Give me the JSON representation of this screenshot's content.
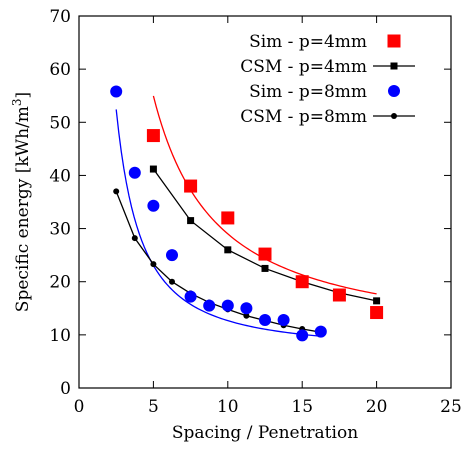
{
  "chart_data": {
    "type": "scatter",
    "xlabel": "Spacing / Penetration",
    "ylabel_main": "Specific energy [kWh/m",
    "ylabel_sup": "3",
    "ylabel_end": "]",
    "xlim": [
      0,
      25
    ],
    "ylim": [
      0,
      70
    ],
    "xticks": [
      0,
      5,
      10,
      15,
      20,
      25
    ],
    "yticks": [
      0,
      10,
      20,
      30,
      40,
      50,
      60,
      70
    ],
    "grid": false,
    "legend_position": "top-right",
    "series": [
      {
        "name": "Sim - p=4mm",
        "kind": "markers",
        "marker": "square",
        "color": "#ff0000",
        "x": [
          5,
          7.5,
          10,
          12.5,
          15,
          17.5,
          20
        ],
        "y": [
          47.5,
          38,
          32,
          25.2,
          20,
          17.5,
          14.2
        ]
      },
      {
        "name": "CSM - p=4mm",
        "kind": "line-markers",
        "marker": "square",
        "color": "#000000",
        "x": [
          5,
          7.5,
          10,
          12.5,
          15,
          17.5,
          20
        ],
        "y": [
          41.2,
          31.5,
          26,
          22.5,
          20,
          17.9,
          16.4
        ]
      },
      {
        "name": "Sim - p=8mm",
        "kind": "markers",
        "marker": "circle",
        "color": "#0000ff",
        "x": [
          2.5,
          3.75,
          5,
          6.25,
          7.5,
          8.75,
          10,
          11.25,
          12.5,
          13.75,
          15,
          16.25
        ],
        "y": [
          55.8,
          40.5,
          34.3,
          25,
          17.2,
          15.5,
          15.5,
          15,
          12.8,
          12.8,
          9.9,
          10.6
        ]
      },
      {
        "name": "CSM - p=8mm",
        "kind": "line-markers",
        "marker": "circle",
        "color": "#000000",
        "x": [
          2.5,
          3.75,
          5,
          6.25,
          7.5,
          8.75,
          10,
          11.25,
          12.5,
          13.75,
          15,
          16.25
        ],
        "y": [
          37,
          28.2,
          23.3,
          20,
          17.8,
          16.1,
          14.8,
          13.6,
          12.7,
          11.8,
          11.1,
          10.5
        ]
      }
    ],
    "fits": [
      {
        "of_series": "Sim - p=4mm",
        "color": "#ff0000",
        "a": 317,
        "b": -1.2,
        "c": 9,
        "x_range": [
          5,
          20
        ]
      },
      {
        "of_series": "Sim - p=8mm",
        "color": "#0000ff",
        "a": 179.5,
        "b": -1.5,
        "c": 7,
        "x_range": [
          2.5,
          16.25
        ]
      }
    ]
  }
}
